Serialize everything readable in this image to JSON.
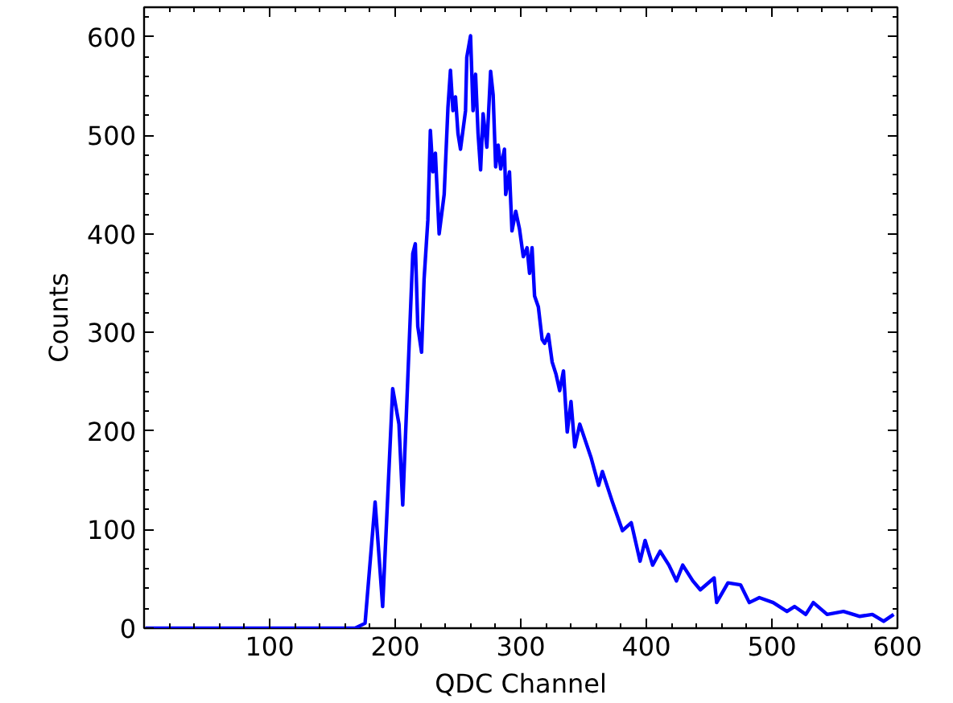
{
  "chart_data": {
    "type": "line",
    "xlabel": "QDC Channel",
    "ylabel": "Counts",
    "xlim": [
      0,
      600
    ],
    "ylim": [
      0,
      630
    ],
    "xticks": [
      100,
      200,
      300,
      400,
      500,
      600
    ],
    "yticks": [
      0,
      100,
      200,
      300,
      400,
      500,
      600
    ],
    "grid": false,
    "line_style": "solid",
    "marker": "none",
    "series": [
      {
        "color": "#0000ff",
        "x": [
          1,
          50,
          100,
          150,
          168,
          176,
          184,
          190,
          198,
          203,
          206,
          214,
          216,
          218,
          221,
          223,
          226,
          228,
          230,
          232,
          235,
          239,
          242,
          244,
          246,
          248,
          250,
          252,
          256,
          257,
          260,
          262,
          264,
          266,
          268,
          270,
          273,
          276,
          278,
          280,
          282,
          284,
          287,
          288,
          291,
          293,
          296,
          299,
          302,
          305,
          307,
          309,
          311,
          314,
          317,
          319,
          322,
          325,
          328,
          331,
          334,
          337,
          340,
          343,
          347,
          356,
          362,
          365,
          373,
          381,
          388,
          395,
          399,
          405,
          411,
          418,
          424,
          429,
          437,
          443,
          454,
          456,
          465,
          475,
          482,
          490,
          501,
          512,
          518,
          527,
          533,
          544,
          557,
          570,
          580,
          589,
          597
        ],
        "values": [
          0,
          0,
          0,
          0,
          0,
          5,
          128,
          22,
          243,
          207,
          125,
          380,
          390,
          306,
          280,
          354,
          414,
          505,
          463,
          482,
          400,
          440,
          528,
          566,
          525,
          539,
          502,
          486,
          525,
          579,
          601,
          525,
          562,
          502,
          465,
          522,
          488,
          565,
          541,
          468,
          490,
          466,
          486,
          440,
          463,
          403,
          423,
          405,
          377,
          386,
          360,
          386,
          337,
          326,
          293,
          289,
          298,
          270,
          258,
          241,
          261,
          199,
          230,
          184,
          207,
          173,
          145,
          159,
          128,
          99,
          107,
          68,
          89,
          64,
          78,
          64,
          48,
          64,
          48,
          39,
          51,
          26,
          46,
          44,
          26,
          31,
          26,
          17,
          22,
          14,
          26,
          14,
          17,
          12,
          14,
          7,
          14
        ]
      }
    ]
  }
}
